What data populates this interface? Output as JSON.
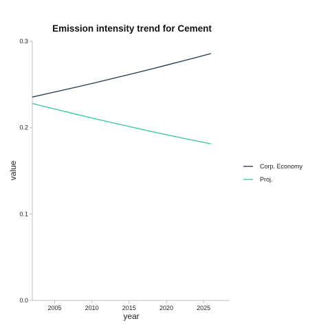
{
  "chart_data": {
    "type": "line",
    "title": "Emission intensity trend for Cement",
    "xlabel": "year",
    "ylabel": "value",
    "xlim": [
      2002,
      2028.5
    ],
    "ylim": [
      0,
      0.3
    ],
    "x_ticks": [
      2005,
      2010,
      2015,
      2020,
      2025
    ],
    "y_ticks": [
      0.0,
      0.1,
      0.2,
      0.3
    ],
    "x_tick_labels": [
      "2005",
      "2010",
      "2015",
      "2020",
      "2025"
    ],
    "y_tick_labels": [
      "0.0",
      "0.1",
      "0.2",
      "0.3"
    ],
    "grid": false,
    "legend_position": "right",
    "x": [
      2002,
      2004,
      2006,
      2008,
      2010,
      2012,
      2014,
      2016,
      2018,
      2020,
      2022,
      2024,
      2026
    ],
    "series": [
      {
        "name": "Corp. Economy",
        "color": "#1f3552",
        "values": [
          0.2354,
          0.2393,
          0.2432,
          0.2471,
          0.2511,
          0.2552,
          0.2594,
          0.2636,
          0.2679,
          0.2723,
          0.2767,
          0.2812,
          0.2858
        ]
      },
      {
        "name": "Proj.",
        "color": "#2ecc8f",
        "values": [
          0.228,
          0.2237,
          0.2195,
          0.2153,
          0.2112,
          0.2072,
          0.2033,
          0.1994,
          0.1956,
          0.1919,
          0.1883,
          0.1847,
          0.1812
        ]
      }
    ]
  }
}
